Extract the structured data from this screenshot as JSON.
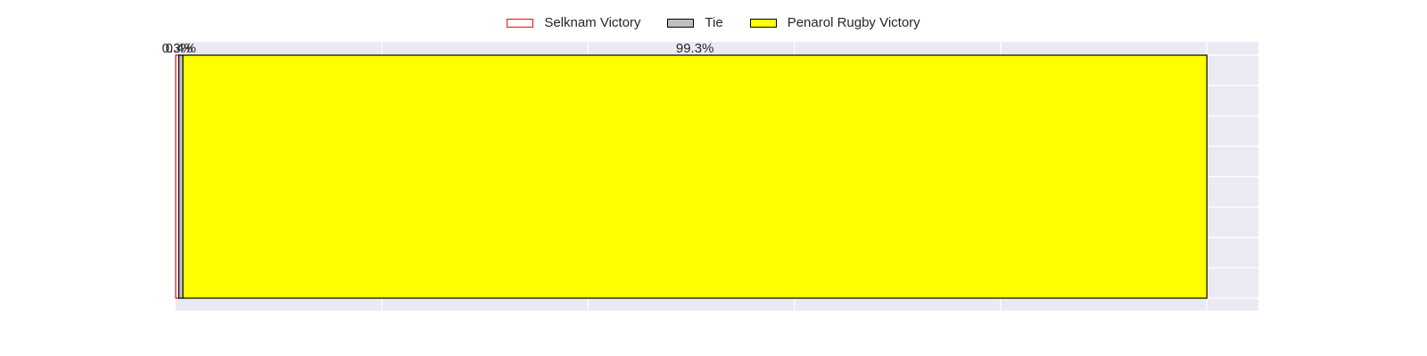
{
  "chart_data": {
    "type": "bar",
    "orientation": "horizontal-stacked",
    "grid": true,
    "legend_position": "top-center",
    "xlim": [
      0,
      105
    ],
    "series": [
      {
        "name": "Selknam Victory",
        "value": 0.3,
        "label": "0.3%",
        "fill": "#ffffff",
        "edge": "#ff0000"
      },
      {
        "name": "Tie",
        "value": 0.4,
        "label": "0.4%",
        "fill": "#c0c0c0",
        "edge": "#000000"
      },
      {
        "name": "Penarol Rugby Victory",
        "value": 99.3,
        "label": "99.3%",
        "fill": "#ffff00",
        "edge": "#000000"
      }
    ]
  },
  "colors": {
    "plot_background": "#eaeaf2",
    "grid": "#ffffff",
    "text": "#262626"
  }
}
